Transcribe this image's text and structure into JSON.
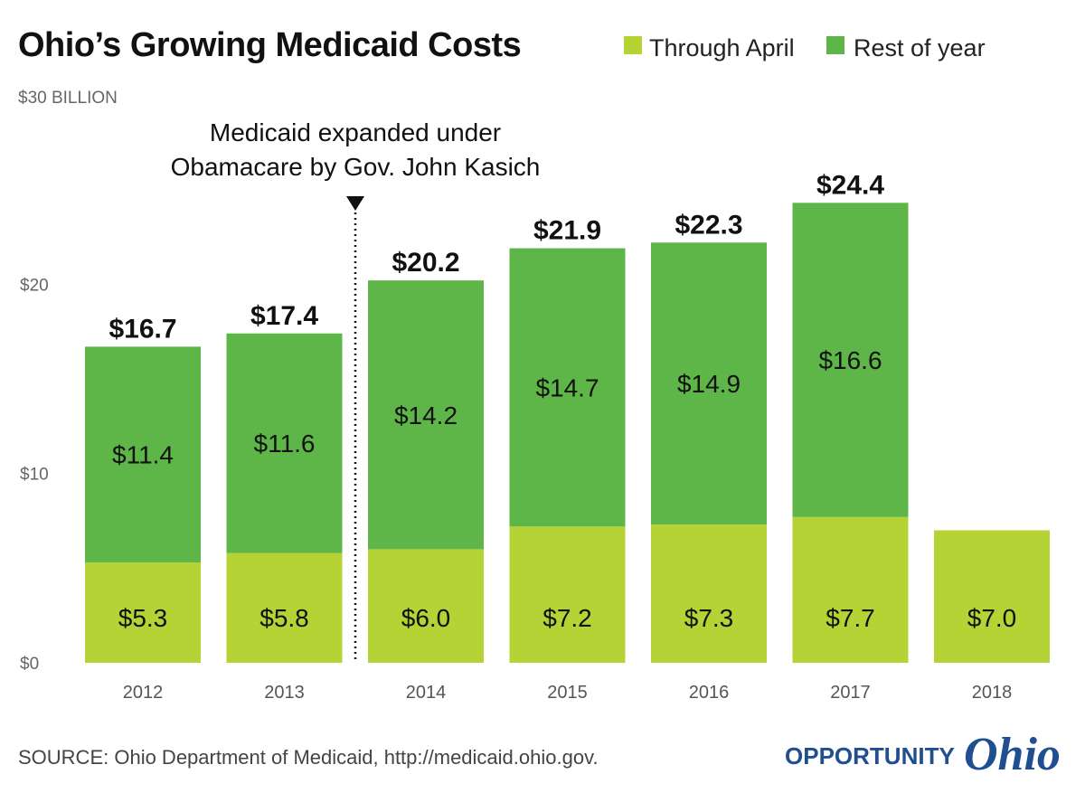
{
  "chart_data": {
    "type": "bar",
    "stacked": true,
    "title": "Ohio’s Growing Medicaid Costs",
    "unit_label": "$30 BILLION",
    "categories": [
      "2012",
      "2013",
      "2014",
      "2015",
      "2016",
      "2017",
      "2018"
    ],
    "series": [
      {
        "name": "Through April",
        "color": "#b5d334",
        "values": [
          5.3,
          5.8,
          6.0,
          7.2,
          7.3,
          7.7,
          7.0
        ],
        "labels": [
          "$5.3",
          "$5.8",
          "$6.0",
          "$7.2",
          "$7.3",
          "$7.7",
          "$7.0"
        ]
      },
      {
        "name": "Rest of year",
        "color": "#5eb648",
        "values": [
          11.4,
          11.6,
          14.2,
          14.7,
          14.9,
          16.6,
          null
        ],
        "labels": [
          "$11.4",
          "$11.6",
          "$14.2",
          "$14.7",
          "$14.9",
          "$16.6",
          ""
        ]
      }
    ],
    "totals": [
      "$16.7",
      "$17.4",
      "$20.2",
      "$21.9",
      "$22.3",
      "$24.4",
      ""
    ],
    "y_ticks": [
      {
        "value": 0,
        "label": "$0"
      },
      {
        "value": 10,
        "label": "$10"
      },
      {
        "value": 20,
        "label": "$20"
      }
    ],
    "ylim": [
      0,
      30
    ],
    "legend_position": "top-right",
    "annotation": {
      "lines": [
        "Medicaid expanded under",
        "Obamacare by Gov. John Kasich"
      ],
      "between": [
        "2013",
        "2014"
      ]
    }
  },
  "footer": {
    "source": "SOURCE: Ohio Department of Medicaid, http://medicaid.ohio.gov.",
    "brand_word1": "OPPORTUNITY",
    "brand_word2": "Ohio",
    "brand_color": "#1f4e91"
  }
}
